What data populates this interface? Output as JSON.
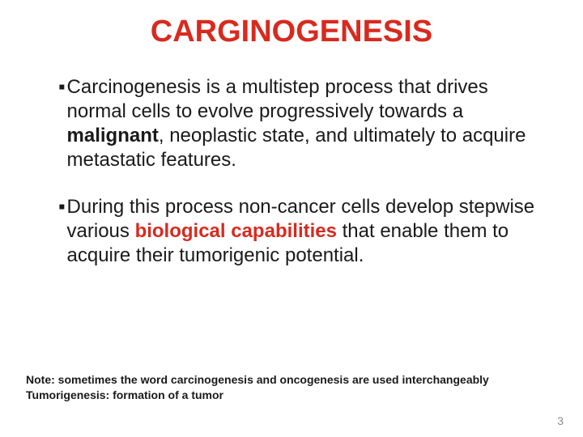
{
  "colors": {
    "title": "#d82a1f",
    "body": "#1a1a1a",
    "highlight": "#d82a1f",
    "note": "#1a1a1a",
    "page_number": "#8a8a8a",
    "background": "#ffffff"
  },
  "fonts": {
    "title_size": 38,
    "body_size": 24,
    "note_size": 14,
    "page_number_size": 14
  },
  "title": "CARGINOGENESIS",
  "bullet_marker": "▪",
  "bullets": [
    {
      "segments": [
        {
          "text": "Carcinogenesis is a multistep process that drives normal cells to evolve progressively towards a ",
          "bold": false,
          "highlight": false
        },
        {
          "text": "malignant",
          "bold": true,
          "highlight": false
        },
        {
          "text": ", neoplastic state, and ultimately to acquire metastatic features.",
          "bold": false,
          "highlight": false
        }
      ]
    },
    {
      "segments": [
        {
          "text": "During this process non-cancer cells develop stepwise various ",
          "bold": false,
          "highlight": false
        },
        {
          "text": "biological capabilities",
          "bold": true,
          "highlight": true
        },
        {
          "text": " that enable them to acquire their tumorigenic potential.",
          "bold": false,
          "highlight": false
        }
      ]
    }
  ],
  "notes": [
    "Note: sometimes the word carcinogenesis and oncogenesis are used interchangeably",
    "Tumorigenesis: formation of a tumor"
  ],
  "page_number": "3"
}
